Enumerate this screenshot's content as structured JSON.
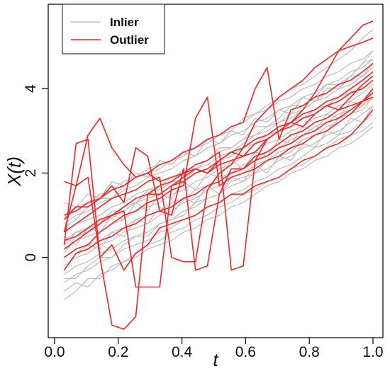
{
  "chart_data": {
    "type": "line",
    "title": "",
    "xlabel": "t",
    "ylabel": "X(t)",
    "xlim": [
      0.0,
      1.0
    ],
    "ylim": [
      -1.9,
      6.0
    ],
    "x_ticks": [
      0.0,
      0.2,
      0.4,
      0.6,
      0.8,
      1.0
    ],
    "x_tick_labels": [
      "0.0",
      "0.2",
      "0.4",
      "0.6",
      "0.8",
      "1.0"
    ],
    "y_ticks": [
      0,
      2,
      4
    ],
    "y_tick_labels": [
      "0",
      "2",
      "4"
    ],
    "grid": false,
    "legend": {
      "position": "top-left",
      "entries": [
        {
          "label": "Inlier",
          "color": "#bfbfbf"
        },
        {
          "label": "Outlier",
          "color": "#ff2020"
        }
      ]
    },
    "colors": {
      "inlier": "#bfbfbf",
      "outlier": "#ff2020"
    },
    "x": [
      0.03,
      0.0675,
      0.105,
      0.1425,
      0.18,
      0.2175,
      0.255,
      0.2925,
      0.33,
      0.3675,
      0.405,
      0.4425,
      0.48,
      0.5175,
      0.555,
      0.5925,
      0.63,
      0.6675,
      0.705,
      0.7425,
      0.78,
      0.8175,
      0.855,
      0.8925,
      0.93,
      0.9675,
      1.0
    ],
    "series": [
      {
        "group": "Inlier",
        "values": [
          -0.8,
          -0.6,
          -0.7,
          -0.4,
          -0.3,
          -0.1,
          0.0,
          0.2,
          0.3,
          0.4,
          0.6,
          0.7,
          0.9,
          1.0,
          1.2,
          1.3,
          1.5,
          1.7,
          1.8,
          2.0,
          2.1,
          2.3,
          2.4,
          2.6,
          2.7,
          2.9,
          3.1
        ]
      },
      {
        "group": "Inlier",
        "values": [
          -0.6,
          -0.4,
          -0.3,
          -0.1,
          0.0,
          0.2,
          0.3,
          0.4,
          0.6,
          0.7,
          0.9,
          1.0,
          1.2,
          1.3,
          1.5,
          1.6,
          1.8,
          1.9,
          2.1,
          2.2,
          2.4,
          2.6,
          2.7,
          2.9,
          3.0,
          3.2,
          3.4
        ]
      },
      {
        "group": "Inlier",
        "values": [
          -0.4,
          -0.2,
          -0.1,
          0.1,
          0.2,
          0.4,
          0.5,
          0.6,
          0.8,
          0.9,
          1.1,
          1.2,
          1.4,
          1.5,
          1.7,
          1.8,
          2.0,
          2.1,
          2.3,
          2.4,
          2.6,
          2.7,
          2.9,
          3.0,
          3.2,
          3.4,
          3.6
        ]
      },
      {
        "group": "Inlier",
        "values": [
          -0.2,
          0.0,
          0.1,
          0.3,
          0.4,
          0.6,
          0.7,
          0.8,
          1.0,
          1.1,
          1.3,
          1.4,
          1.6,
          1.7,
          1.9,
          2.0,
          2.2,
          2.3,
          2.5,
          2.6,
          2.8,
          2.9,
          3.1,
          3.2,
          3.4,
          3.6,
          3.8
        ]
      },
      {
        "group": "Inlier",
        "values": [
          0.0,
          0.2,
          0.3,
          0.4,
          0.6,
          0.7,
          0.9,
          1.0,
          1.1,
          1.3,
          1.4,
          1.6,
          1.7,
          1.9,
          2.0,
          2.2,
          2.3,
          2.5,
          2.6,
          2.8,
          2.9,
          3.1,
          3.2,
          3.4,
          3.5,
          3.7,
          3.9
        ]
      },
      {
        "group": "Inlier",
        "values": [
          0.2,
          0.4,
          0.5,
          0.6,
          0.8,
          0.9,
          1.1,
          1.2,
          1.3,
          1.5,
          1.6,
          1.8,
          1.9,
          2.1,
          2.2,
          2.4,
          2.5,
          2.7,
          2.8,
          3.0,
          3.1,
          3.3,
          3.4,
          3.6,
          3.7,
          3.9,
          4.1
        ]
      },
      {
        "group": "Inlier",
        "values": [
          0.4,
          0.6,
          0.7,
          0.8,
          1.0,
          1.1,
          1.3,
          1.4,
          1.5,
          1.7,
          1.8,
          2.0,
          2.1,
          2.3,
          2.4,
          2.6,
          2.7,
          2.9,
          3.0,
          3.2,
          3.3,
          3.5,
          3.6,
          3.8,
          3.9,
          4.1,
          4.3
        ]
      },
      {
        "group": "Inlier",
        "values": [
          0.6,
          0.8,
          0.9,
          1.0,
          1.2,
          1.3,
          1.5,
          1.6,
          1.7,
          1.9,
          2.0,
          2.2,
          2.3,
          2.5,
          2.6,
          2.8,
          2.9,
          3.1,
          3.2,
          3.4,
          3.5,
          3.7,
          3.8,
          4.0,
          4.1,
          4.3,
          4.5
        ]
      },
      {
        "group": "Inlier",
        "values": [
          0.8,
          1.0,
          1.1,
          1.3,
          1.4,
          1.6,
          1.7,
          1.9,
          2.0,
          2.1,
          2.3,
          2.4,
          2.6,
          2.7,
          2.9,
          3.0,
          3.2,
          3.3,
          3.5,
          3.6,
          3.8,
          3.9,
          4.1,
          4.2,
          4.4,
          4.5,
          4.7
        ]
      },
      {
        "group": "Inlier",
        "values": [
          1.0,
          1.2,
          1.3,
          1.5,
          1.6,
          1.8,
          1.9,
          2.1,
          2.2,
          2.3,
          2.5,
          2.6,
          2.8,
          2.9,
          3.1,
          3.2,
          3.4,
          3.5,
          3.7,
          3.8,
          4.0,
          4.1,
          4.3,
          4.4,
          4.6,
          4.7,
          4.9
        ]
      },
      {
        "group": "Inlier",
        "values": [
          -0.3,
          0.1,
          0.3,
          0.2,
          0.6,
          0.5,
          0.9,
          0.8,
          1.2,
          1.0,
          1.4,
          1.3,
          1.7,
          1.5,
          1.9,
          1.8,
          2.2,
          2.0,
          2.4,
          2.3,
          2.7,
          2.6,
          3.0,
          2.9,
          3.3,
          3.2,
          3.6
        ]
      },
      {
        "group": "Inlier",
        "values": [
          0.5,
          0.3,
          0.7,
          0.6,
          1.0,
          0.9,
          1.3,
          1.1,
          1.5,
          1.4,
          1.8,
          1.6,
          2.0,
          1.9,
          2.3,
          2.1,
          2.5,
          2.4,
          2.8,
          2.7,
          3.1,
          3.0,
          3.4,
          3.3,
          3.7,
          3.6,
          4.0
        ]
      },
      {
        "group": "Inlier",
        "values": [
          1.3,
          1.2,
          1.5,
          1.4,
          1.8,
          1.7,
          2.0,
          1.9,
          2.3,
          2.2,
          2.5,
          2.4,
          2.8,
          2.7,
          3.0,
          2.9,
          3.3,
          3.2,
          3.5,
          3.4,
          3.8,
          3.7,
          4.0,
          4.0,
          4.3,
          4.3,
          4.6
        ]
      },
      {
        "group": "Inlier",
        "values": [
          -1.0,
          -0.8,
          -0.5,
          -0.5,
          -0.2,
          -0.1,
          0.1,
          0.3,
          0.4,
          0.6,
          0.7,
          0.9,
          1.0,
          1.2,
          1.3,
          1.5,
          1.6,
          1.8,
          1.9,
          2.1,
          2.2,
          2.4,
          2.6,
          2.8,
          2.9,
          3.0,
          3.2
        ]
      },
      {
        "group": "Inlier",
        "values": [
          0.1,
          0.5,
          0.6,
          0.9,
          0.9,
          1.2,
          1.3,
          1.5,
          1.6,
          1.8,
          1.8,
          2.1,
          2.2,
          2.4,
          2.5,
          2.7,
          2.9,
          3.0,
          3.2,
          3.3,
          3.5,
          3.7,
          3.9,
          4.1,
          4.3,
          4.6,
          4.9
        ]
      },
      {
        "group": "Inlier",
        "values": [
          0.7,
          0.9,
          1.2,
          1.4,
          1.4,
          1.7,
          1.9,
          2.0,
          2.1,
          2.3,
          2.4,
          2.6,
          2.7,
          2.9,
          3.0,
          3.3,
          3.4,
          3.6,
          3.8,
          4.0,
          4.1,
          4.3,
          4.5,
          4.7,
          4.9,
          5.2,
          5.4
        ]
      },
      {
        "group": "Inlier",
        "values": [
          -0.5,
          -0.5,
          -0.2,
          0.0,
          0.0,
          0.3,
          0.5,
          0.5,
          0.8,
          0.9,
          1.0,
          1.3,
          1.4,
          1.5,
          1.8,
          1.9,
          2.0,
          2.3,
          2.4,
          2.5,
          2.8,
          2.9,
          3.0,
          3.3,
          3.4,
          3.5,
          3.8
        ]
      },
      {
        "group": "Inlier",
        "values": [
          0.3,
          0.6,
          0.6,
          0.8,
          1.1,
          1.1,
          1.3,
          1.6,
          1.6,
          1.8,
          2.1,
          2.1,
          2.3,
          2.6,
          2.6,
          2.8,
          3.1,
          3.1,
          3.3,
          3.6,
          3.6,
          3.8,
          4.1,
          4.1,
          4.3,
          4.6,
          4.7
        ]
      },
      {
        "group": "Outlier",
        "values": [
          0.3,
          2.7,
          2.8,
          0.0,
          0.3,
          -0.3,
          0.1,
          0.3,
          0.7,
          0.8,
          0.9,
          1.0,
          1.2,
          1.3,
          1.5,
          1.5,
          1.7,
          1.8,
          1.9,
          2.1,
          2.3,
          2.4,
          2.6,
          2.7,
          2.9,
          3.2,
          3.5
        ]
      },
      {
        "group": "Outlier",
        "values": [
          1.8,
          1.7,
          2.9,
          3.3,
          2.6,
          2.2,
          1.9,
          2.0,
          1.8,
          1.9,
          2.0,
          2.1,
          2.0,
          2.3,
          2.5,
          2.4,
          2.7,
          2.8,
          3.0,
          3.2,
          3.1,
          3.4,
          3.6,
          3.5,
          3.8,
          4.1,
          4.3
        ]
      },
      {
        "group": "Outlier",
        "values": [
          0.6,
          1.7,
          1.9,
          0.0,
          -1.6,
          -1.7,
          -1.4,
          1.5,
          1.5,
          1.7,
          1.9,
          2.1,
          2.0,
          2.2,
          2.3,
          2.4,
          2.5,
          2.8,
          3.0,
          3.2,
          3.5,
          3.9,
          4.4,
          4.9,
          5.2,
          5.5,
          5.6
        ]
      },
      {
        "group": "Outlier",
        "values": [
          0.0,
          0.2,
          0.3,
          0.6,
          0.8,
          1.0,
          1.1,
          1.3,
          1.4,
          1.6,
          1.7,
          3.3,
          3.8,
          1.7,
          1.9,
          2.0,
          2.1,
          2.3,
          2.4,
          2.6,
          2.7,
          2.9,
          3.0,
          3.2,
          3.4,
          3.7,
          4.0
        ]
      },
      {
        "group": "Outlier",
        "values": [
          -0.3,
          0.1,
          0.2,
          0.4,
          0.5,
          0.7,
          0.8,
          1.0,
          1.1,
          1.2,
          1.4,
          1.5,
          1.7,
          1.8,
          2.0,
          2.1,
          2.3,
          2.4,
          2.6,
          2.7,
          2.9,
          3.0,
          3.2,
          3.3,
          3.5,
          3.7,
          3.9
        ]
      },
      {
        "group": "Outlier",
        "values": [
          0.9,
          1.2,
          1.2,
          1.4,
          1.7,
          1.3,
          2.6,
          2.4,
          1.1,
          1.0,
          2.1,
          -0.3,
          -0.2,
          1.5,
          2.1,
          2.1,
          2.4,
          2.5,
          2.7,
          2.9,
          3.0,
          3.2,
          3.3,
          3.5,
          3.6,
          3.7,
          3.8
        ]
      },
      {
        "group": "Outlier",
        "values": [
          0.6,
          0.8,
          1.0,
          1.2,
          1.4,
          1.5,
          1.6,
          1.8,
          1.9,
          0.0,
          -0.1,
          -0.1,
          1.6,
          2.0,
          2.2,
          2.6,
          3.2,
          3.5,
          3.8,
          4.0,
          4.2,
          4.5,
          4.7,
          4.9,
          5.0,
          5.1,
          5.2
        ]
      },
      {
        "group": "Outlier",
        "values": [
          0.2,
          0.4,
          0.6,
          0.8,
          1.0,
          1.1,
          -0.7,
          -0.7,
          -0.7,
          1.7,
          1.8,
          2.0,
          2.1,
          2.3,
          2.5,
          2.6,
          2.8,
          2.9,
          3.1,
          3.2,
          3.4,
          3.5,
          3.7,
          3.8,
          4.0,
          4.2,
          4.4
        ]
      },
      {
        "group": "Outlier",
        "values": [
          0.4,
          0.5,
          0.7,
          0.9,
          1.0,
          1.2,
          1.4,
          1.5,
          1.7,
          1.8,
          2.0,
          2.2,
          2.3,
          2.5,
          -0.3,
          -0.2,
          2.3,
          2.8,
          3.0,
          3.1,
          3.3,
          3.4,
          3.6,
          3.7,
          3.9,
          4.0,
          4.2
        ]
      },
      {
        "group": "Outlier",
        "values": [
          1.0,
          1.1,
          1.3,
          1.4,
          1.6,
          1.7,
          1.9,
          2.0,
          2.2,
          2.3,
          2.5,
          2.6,
          2.8,
          2.9,
          3.1,
          3.2,
          4.0,
          4.5,
          2.8,
          3.5,
          3.6,
          3.8,
          3.9,
          4.1,
          4.2,
          4.4,
          4.6
        ]
      }
    ]
  },
  "legend": {
    "inlier_label": "Inlier",
    "outlier_label": "Outlier"
  }
}
